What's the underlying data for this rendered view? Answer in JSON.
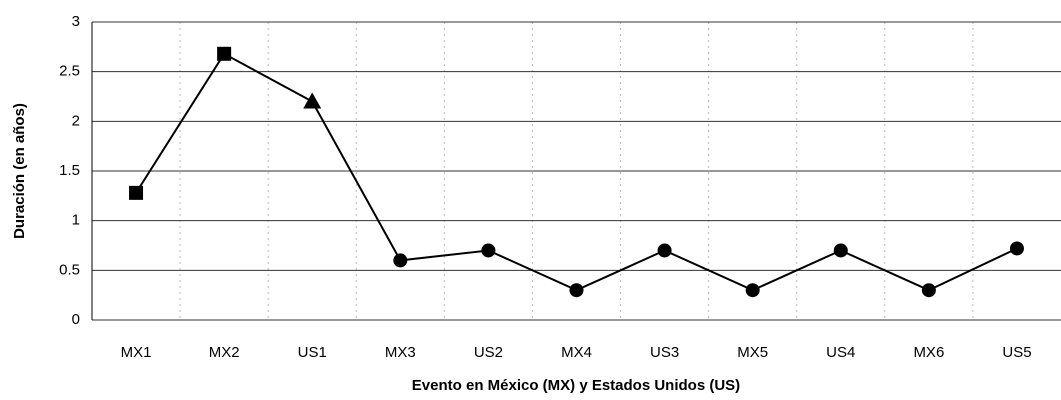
{
  "chart_data": {
    "type": "line",
    "x_label": "Evento en México (MX) y Estados Unidos (US)",
    "y_label": "Duración (en años)",
    "categories": [
      "MX1",
      "MX2",
      "US1",
      "MX3",
      "US2",
      "MX4",
      "US3",
      "MX5",
      "US4",
      "MX6",
      "US5"
    ],
    "series": [
      {
        "color": "#000000",
        "values": [
          1.28,
          2.68,
          2.2,
          0.6,
          0.7,
          0.3,
          0.7,
          0.3,
          0.7,
          0.3,
          0.72
        ],
        "markers": [
          "square",
          "square",
          "triangle",
          "circle",
          "circle",
          "circle",
          "circle",
          "circle",
          "circle",
          "circle",
          "circle"
        ]
      }
    ],
    "ylim": [
      0,
      3
    ],
    "yticks": [
      0,
      0.5,
      1,
      1.5,
      2,
      2.5,
      3
    ],
    "grid": true
  }
}
